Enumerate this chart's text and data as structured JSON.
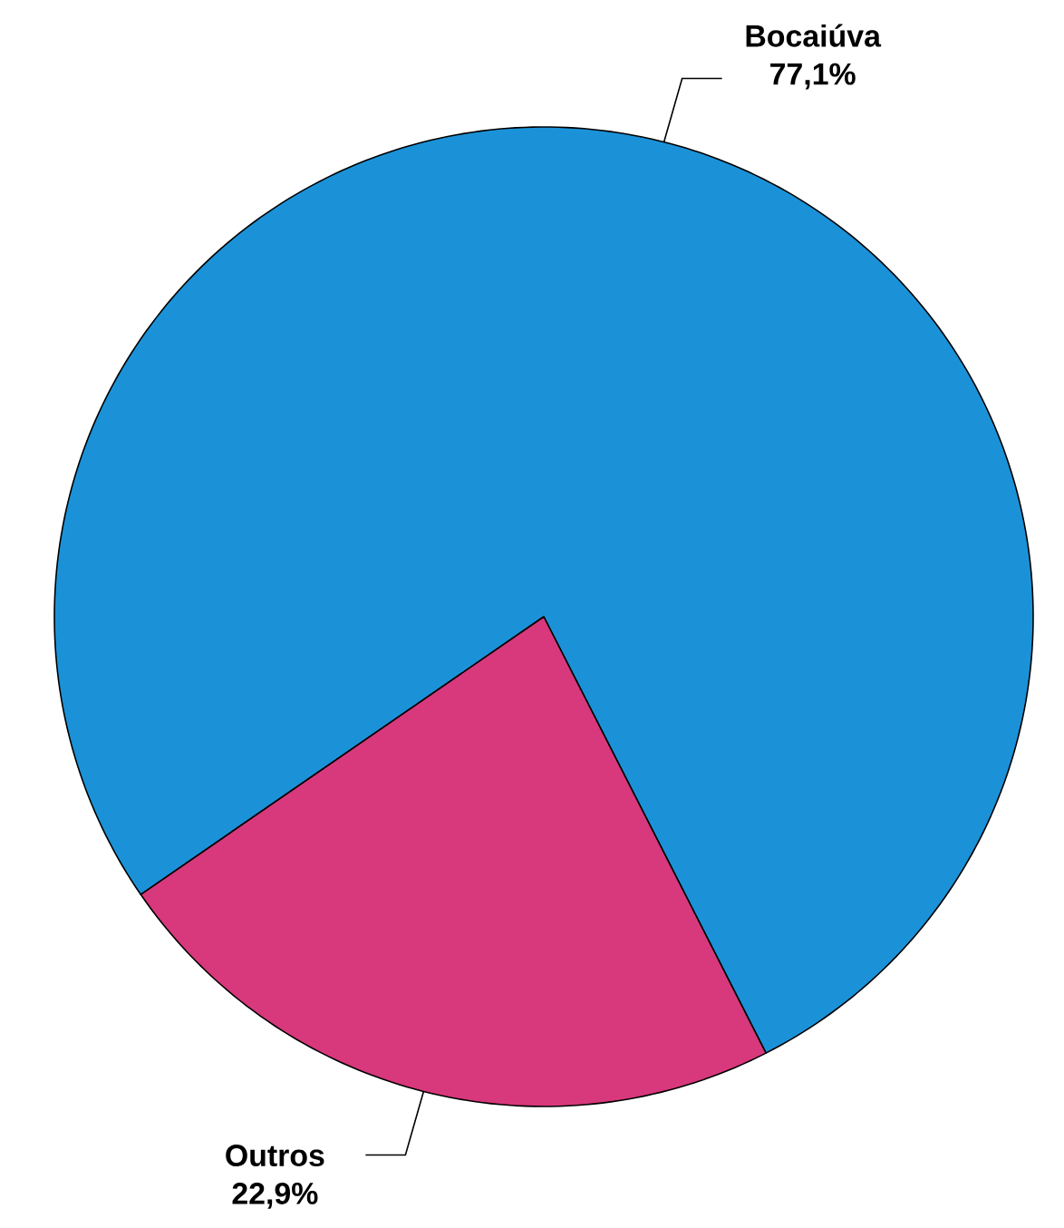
{
  "chart_data": {
    "type": "pie",
    "categories": [
      "Bocaiúva",
      "Outros"
    ],
    "values": [
      77.1,
      22.9
    ],
    "value_labels": [
      "77,1%",
      "22,9%"
    ],
    "colors": [
      "#1b92d8",
      "#d8387c"
    ]
  }
}
